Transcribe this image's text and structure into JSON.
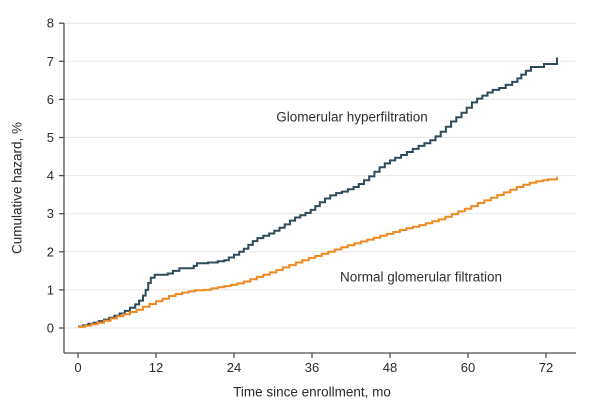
{
  "figure": {
    "background": "#ffffff"
  },
  "chart_data": {
    "type": "line",
    "subtype": "step-function-cumulative-hazard",
    "title": "",
    "xlabel": "Time since enrollment, mo",
    "ylabel": "Cumulative hazard, %",
    "xlim": [
      0,
      76
    ],
    "ylim": [
      0,
      8
    ],
    "xticks": [
      0,
      12,
      24,
      36,
      48,
      60,
      72
    ],
    "yticks": [
      0,
      1,
      2,
      3,
      4,
      5,
      6,
      7,
      8
    ],
    "grid": "horizontal-light",
    "legend": "inline-labels",
    "series": [
      {
        "name": "Glomerular hyperfiltration",
        "color": "#2f4b5a",
        "final_value_pct": 7.1,
        "points": [
          [
            0,
            0.04
          ],
          [
            0.8,
            0.07
          ],
          [
            1.6,
            0.11
          ],
          [
            2.4,
            0.14
          ],
          [
            3.2,
            0.18
          ],
          [
            4,
            0.22
          ],
          [
            4.8,
            0.27
          ],
          [
            5.6,
            0.32
          ],
          [
            6.4,
            0.38
          ],
          [
            7.2,
            0.45
          ],
          [
            8,
            0.53
          ],
          [
            8.8,
            0.62
          ],
          [
            9.4,
            0.72
          ],
          [
            10,
            0.85
          ],
          [
            10.4,
            1.0
          ],
          [
            10.8,
            1.18
          ],
          [
            11.2,
            1.32
          ],
          [
            11.8,
            1.4
          ],
          [
            13.8,
            1.43
          ],
          [
            14.6,
            1.5
          ],
          [
            15.6,
            1.57
          ],
          [
            17.8,
            1.63
          ],
          [
            18.3,
            1.7
          ],
          [
            20,
            1.72
          ],
          [
            21.5,
            1.75
          ],
          [
            22.5,
            1.78
          ],
          [
            23.2,
            1.85
          ],
          [
            24,
            1.92
          ],
          [
            24.8,
            2.0
          ],
          [
            25.5,
            2.08
          ],
          [
            26.2,
            2.18
          ],
          [
            26.9,
            2.28
          ],
          [
            27.6,
            2.36
          ],
          [
            28.5,
            2.42
          ],
          [
            29.4,
            2.48
          ],
          [
            30.2,
            2.55
          ],
          [
            31,
            2.63
          ],
          [
            31.8,
            2.72
          ],
          [
            32.6,
            2.82
          ],
          [
            33.4,
            2.9
          ],
          [
            34.2,
            2.96
          ],
          [
            35,
            3.02
          ],
          [
            35.8,
            3.1
          ],
          [
            36.5,
            3.2
          ],
          [
            37.2,
            3.3
          ],
          [
            38,
            3.4
          ],
          [
            38.8,
            3.48
          ],
          [
            39.7,
            3.54
          ],
          [
            40.6,
            3.58
          ],
          [
            41.5,
            3.64
          ],
          [
            42.4,
            3.7
          ],
          [
            43.2,
            3.78
          ],
          [
            44,
            3.88
          ],
          [
            44.8,
            3.98
          ],
          [
            45.6,
            4.1
          ],
          [
            46.4,
            4.22
          ],
          [
            47.2,
            4.32
          ],
          [
            48,
            4.4
          ],
          [
            48.8,
            4.47
          ],
          [
            49.7,
            4.54
          ],
          [
            50.6,
            4.62
          ],
          [
            51.5,
            4.7
          ],
          [
            52.4,
            4.78
          ],
          [
            53.3,
            4.85
          ],
          [
            54.2,
            4.93
          ],
          [
            55,
            5.03
          ],
          [
            55.8,
            5.15
          ],
          [
            56.6,
            5.28
          ],
          [
            57.4,
            5.42
          ],
          [
            58.2,
            5.53
          ],
          [
            59,
            5.65
          ],
          [
            59.8,
            5.78
          ],
          [
            60.6,
            5.92
          ],
          [
            61.4,
            6.02
          ],
          [
            62.2,
            6.1
          ],
          [
            63,
            6.18
          ],
          [
            63.8,
            6.25
          ],
          [
            64.8,
            6.3
          ],
          [
            65.8,
            6.38
          ],
          [
            66.8,
            6.46
          ],
          [
            67.6,
            6.55
          ],
          [
            68.2,
            6.65
          ],
          [
            68.9,
            6.75
          ],
          [
            69.7,
            6.85
          ],
          [
            71.7,
            6.93
          ],
          [
            73.6,
            6.93
          ],
          [
            73.7,
            7.1
          ]
        ]
      },
      {
        "name": "Normal glomerular filtration",
        "color": "#ef8a21",
        "final_value_pct": 3.97,
        "points": [
          [
            0,
            0.03
          ],
          [
            1,
            0.06
          ],
          [
            2,
            0.1
          ],
          [
            3,
            0.14
          ],
          [
            4,
            0.19
          ],
          [
            5,
            0.25
          ],
          [
            6,
            0.31
          ],
          [
            7,
            0.36
          ],
          [
            8,
            0.42
          ],
          [
            9,
            0.48
          ],
          [
            10,
            0.56
          ],
          [
            11,
            0.63
          ],
          [
            12,
            0.7
          ],
          [
            13,
            0.77
          ],
          [
            14,
            0.84
          ],
          [
            15,
            0.89
          ],
          [
            16,
            0.93
          ],
          [
            17,
            0.96
          ],
          [
            18,
            0.99
          ],
          [
            19.4,
            1.0
          ],
          [
            20.5,
            1.04
          ],
          [
            21.5,
            1.07
          ],
          [
            22.5,
            1.1
          ],
          [
            23.5,
            1.13
          ],
          [
            24.5,
            1.17
          ],
          [
            25.5,
            1.22
          ],
          [
            26.5,
            1.28
          ],
          [
            27.5,
            1.34
          ],
          [
            28.5,
            1.4
          ],
          [
            29.5,
            1.46
          ],
          [
            30.5,
            1.52
          ],
          [
            31.5,
            1.59
          ],
          [
            32.5,
            1.65
          ],
          [
            33.5,
            1.72
          ],
          [
            34.5,
            1.78
          ],
          [
            35.5,
            1.84
          ],
          [
            36.5,
            1.89
          ],
          [
            37.5,
            1.95
          ],
          [
            38.5,
            2.0
          ],
          [
            39.5,
            2.06
          ],
          [
            40.5,
            2.12
          ],
          [
            41.5,
            2.17
          ],
          [
            42.5,
            2.22
          ],
          [
            43.5,
            2.27
          ],
          [
            44.5,
            2.32
          ],
          [
            45.5,
            2.37
          ],
          [
            46.5,
            2.42
          ],
          [
            47.5,
            2.47
          ],
          [
            48.5,
            2.52
          ],
          [
            49.5,
            2.57
          ],
          [
            50.5,
            2.62
          ],
          [
            51.5,
            2.66
          ],
          [
            52.5,
            2.7
          ],
          [
            53.5,
            2.75
          ],
          [
            54.5,
            2.8
          ],
          [
            55.5,
            2.85
          ],
          [
            56.5,
            2.92
          ],
          [
            57.5,
            2.99
          ],
          [
            58.5,
            3.06
          ],
          [
            59.5,
            3.13
          ],
          [
            60.5,
            3.2
          ],
          [
            61.5,
            3.28
          ],
          [
            62.5,
            3.35
          ],
          [
            63.5,
            3.42
          ],
          [
            64.5,
            3.49
          ],
          [
            65.5,
            3.56
          ],
          [
            66.5,
            3.63
          ],
          [
            67.5,
            3.7
          ],
          [
            68.5,
            3.76
          ],
          [
            69.5,
            3.81
          ],
          [
            70.5,
            3.85
          ],
          [
            71.5,
            3.88
          ],
          [
            72.3,
            3.9
          ],
          [
            73.5,
            3.9
          ],
          [
            73.7,
            3.97
          ]
        ]
      }
    ]
  },
  "colors": {
    "grid": "#e7e7e7",
    "axis": "#4d4d4d",
    "tick_text": "#2b2b2b"
  }
}
